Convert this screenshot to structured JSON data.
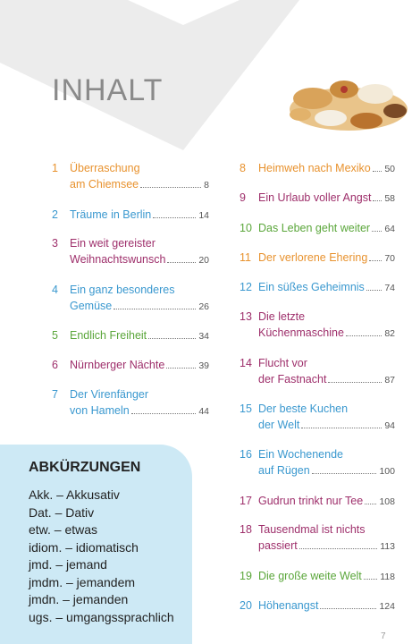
{
  "header": {
    "title": "INHALT"
  },
  "toc": {
    "entries": [
      {
        "number": 1,
        "lines": [
          "Überraschung",
          "am Chiemsee"
        ],
        "page": 8,
        "color": "#e8922e"
      },
      {
        "number": 2,
        "lines": [
          "Träume in Berlin"
        ],
        "page": 14,
        "color": "#3a98cf"
      },
      {
        "number": 3,
        "lines": [
          "Ein weit gereister",
          "Weihnachtswunsch"
        ],
        "page": 20,
        "color": "#9e2f6b"
      },
      {
        "number": 4,
        "lines": [
          "Ein ganz besonderes",
          "Gemüse"
        ],
        "page": 26,
        "color": "#3a98cf"
      },
      {
        "number": 5,
        "lines": [
          "Endlich Freiheit"
        ],
        "page": 34,
        "color": "#5aa63a"
      },
      {
        "number": 6,
        "lines": [
          "Nürnberger Nächte"
        ],
        "page": 39,
        "color": "#9e2f6b"
      },
      {
        "number": 7,
        "lines": [
          "Der Virenfänger",
          "von Hameln"
        ],
        "page": 44,
        "color": "#3a98cf"
      },
      {
        "number": 8,
        "lines": [
          "Heimweh nach Mexiko"
        ],
        "page": 50,
        "color": "#e8922e"
      },
      {
        "number": 9,
        "lines": [
          "Ein Urlaub voller Angst"
        ],
        "page": 58,
        "color": "#9e2f6b"
      },
      {
        "number": 10,
        "lines": [
          "Das Leben geht weiter"
        ],
        "page": 64,
        "color": "#5aa63a"
      },
      {
        "number": 11,
        "lines": [
          "Der verlorene Ehering"
        ],
        "page": 70,
        "color": "#e8922e"
      },
      {
        "number": 12,
        "lines": [
          "Ein süßes Geheimnis"
        ],
        "page": 74,
        "color": "#3a98cf"
      },
      {
        "number": 13,
        "lines": [
          "Die letzte",
          "Küchenmaschine"
        ],
        "page": 82,
        "color": "#9e2f6b"
      },
      {
        "number": 14,
        "lines": [
          "Flucht vor",
          "der Fastnacht"
        ],
        "page": 87,
        "color": "#9e2f6b"
      },
      {
        "number": 15,
        "lines": [
          "Der beste Kuchen",
          "der Welt"
        ],
        "page": 94,
        "color": "#3a98cf"
      },
      {
        "number": 16,
        "lines": [
          "Ein Wochenende",
          "auf Rügen"
        ],
        "page": 100,
        "color": "#3a98cf"
      },
      {
        "number": 17,
        "lines": [
          "Gudrun trinkt nur Tee"
        ],
        "page": 108,
        "color": "#9e2f6b"
      },
      {
        "number": 18,
        "lines": [
          "Tausendmal ist nichts",
          "passiert"
        ],
        "page": 113,
        "color": "#9e2f6b"
      },
      {
        "number": 19,
        "lines": [
          "Die große weite Welt"
        ],
        "page": 118,
        "color": "#5aa63a"
      },
      {
        "number": 20,
        "lines": [
          "Höhenangst"
        ],
        "page": 124,
        "color": "#3a98cf"
      }
    ]
  },
  "abbreviations": {
    "title": "ABKÜRZUNGEN",
    "items": [
      "Akk. – Akkusativ",
      "Dat. – Dativ",
      "etw. – etwas",
      "idiom. – idiomatisch",
      "jmd. – jemand",
      "jmdm. – jemandem",
      "jmdn. – jemanden",
      "ugs. – umgangssprachlich"
    ]
  },
  "footer": {
    "page_number": 7
  }
}
